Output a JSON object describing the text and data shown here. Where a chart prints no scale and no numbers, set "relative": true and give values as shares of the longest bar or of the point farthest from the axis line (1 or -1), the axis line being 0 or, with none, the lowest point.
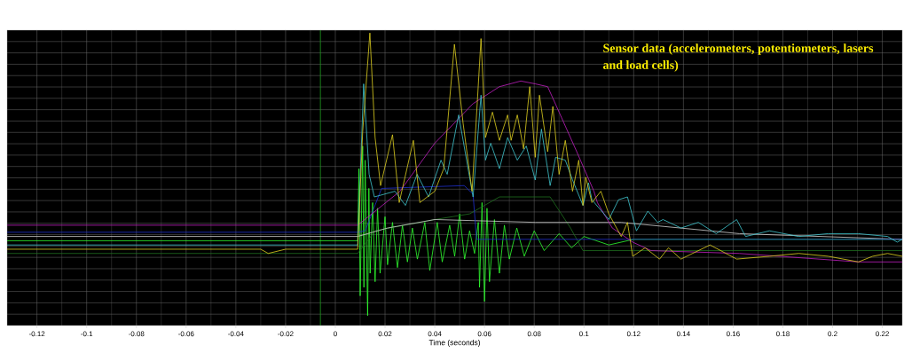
{
  "chart_data": {
    "type": "line",
    "relative": true,
    "xlabel": "Time (seconds)",
    "annotations": [
      "Sensor data (accelerometers, potentiometers, lasers and load cells)"
    ],
    "xlim": [
      -0.132,
      0.228
    ],
    "xticks": [
      -0.12,
      -0.1,
      -0.08,
      -0.06,
      -0.04,
      -0.02,
      0,
      0.02,
      0.04,
      0.06,
      0.08,
      0.1,
      0.12,
      0.14,
      0.16,
      0.18,
      0.2,
      0.22
    ],
    "grid": true,
    "ref_lines": [
      {
        "axis": "x",
        "value": -0.006,
        "color": "#20a020"
      }
    ],
    "series": [
      {
        "color": "#30ff30",
        "x": [
          -0.132,
          0.009,
          0.0095,
          0.01,
          0.011,
          0.0115,
          0.012,
          0.013,
          0.0135,
          0.014,
          0.015,
          0.016,
          0.017,
          0.018,
          0.02,
          0.021,
          0.023,
          0.025,
          0.027,
          0.029,
          0.031,
          0.033,
          0.036,
          0.038,
          0.041,
          0.043,
          0.046,
          0.048,
          0.05,
          0.052,
          0.054,
          0.056,
          0.0575,
          0.058,
          0.059,
          0.06,
          0.061,
          0.062,
          0.064,
          0.066,
          0.068,
          0.07,
          0.073,
          0.076,
          0.08,
          0.084,
          0.09,
          0.095,
          0.1,
          0.11,
          0.12,
          0.228
        ],
        "values": [
          0.265,
          0.265,
          0.52,
          0.07,
          0.6,
          0.1,
          0.55,
          0.0,
          0.45,
          0.15,
          0.4,
          0.12,
          0.38,
          0.15,
          0.35,
          0.18,
          0.33,
          0.17,
          0.32,
          0.19,
          0.31,
          0.2,
          0.33,
          0.16,
          0.33,
          0.19,
          0.32,
          0.21,
          0.36,
          0.2,
          0.3,
          0.22,
          0.33,
          0.1,
          0.4,
          0.05,
          0.38,
          0.12,
          0.34,
          0.15,
          0.32,
          0.2,
          0.31,
          0.21,
          0.3,
          0.23,
          0.29,
          0.24,
          0.28,
          0.25,
          0.27,
          0.27
        ]
      },
      {
        "color": "#207020",
        "x": [
          -0.132,
          0.009,
          0.016,
          0.04,
          0.054,
          0.066,
          0.0864,
          0.0946,
          0.0996,
          0.228
        ],
        "values": [
          0.22,
          0.22,
          0.3,
          0.34,
          0.36,
          0.42,
          0.42,
          0.31,
          0.23,
          0.23
        ]
      },
      {
        "color": "#d0d0d0",
        "x": [
          -0.132,
          0.009,
          0.021,
          0.04,
          0.0804,
          0.115,
          0.1625,
          0.228
        ],
        "values": [
          0.28,
          0.28,
          0.31,
          0.34,
          0.33,
          0.33,
          0.29,
          0.27
        ]
      },
      {
        "color": "#2030d0",
        "x": [
          -0.132,
          0.009,
          0.012,
          0.0186,
          0.0518,
          0.0554,
          0.0568,
          0.228
        ],
        "values": [
          0.295,
          0.295,
          0.3,
          0.45,
          0.46,
          0.43,
          0.27,
          0.27
        ]
      },
      {
        "color": "#c020c0",
        "x": [
          -0.132,
          0.009,
          0.026,
          0.04,
          0.0554,
          0.066,
          0.0746,
          0.0804,
          0.0854,
          0.09,
          0.0971,
          0.104,
          0.1054,
          0.1114,
          0.1196,
          0.127,
          0.1625,
          0.2104,
          0.228
        ],
        "values": [
          0.32,
          0.32,
          0.44,
          0.61,
          0.75,
          0.81,
          0.83,
          0.82,
          0.81,
          0.72,
          0.58,
          0.44,
          0.4,
          0.31,
          0.26,
          0.23,
          0.22,
          0.19,
          0.19
        ]
      },
      {
        "color": "#40c8d0",
        "x": [
          -0.132,
          0.009,
          0.0114,
          0.0136,
          0.0157,
          0.024,
          0.0282,
          0.0329,
          0.0375,
          0.0425,
          0.045,
          0.0496,
          0.0532,
          0.0554,
          0.0586,
          0.0604,
          0.0625,
          0.066,
          0.0693,
          0.0732,
          0.0768,
          0.0804,
          0.0829,
          0.0864,
          0.0886,
          0.0925,
          0.0954,
          0.0996,
          0.1018,
          0.1032,
          0.11,
          0.1139,
          0.1175,
          0.1211,
          0.1257,
          0.1296,
          0.1318,
          0.139,
          0.146,
          0.1532,
          0.1614,
          0.165,
          0.1746,
          0.1864,
          0.1982,
          0.2104,
          0.2221,
          0.226,
          0.228
        ],
        "values": [
          0.25,
          0.25,
          0.82,
          0.5,
          0.42,
          0.44,
          0.39,
          0.5,
          0.42,
          0.55,
          0.5,
          0.71,
          0.53,
          0.42,
          0.78,
          0.55,
          0.61,
          0.52,
          0.63,
          0.55,
          0.6,
          0.48,
          0.66,
          0.46,
          0.56,
          0.55,
          0.48,
          0.39,
          0.47,
          0.41,
          0.34,
          0.41,
          0.42,
          0.3,
          0.37,
          0.33,
          0.34,
          0.31,
          0.33,
          0.29,
          0.34,
          0.28,
          0.3,
          0.28,
          0.29,
          0.29,
          0.28,
          0.26,
          0.27
        ]
      },
      {
        "color": "#e0d020",
        "x": [
          -0.132,
          -0.03,
          -0.027,
          -0.02,
          0.009,
          0.011,
          0.0139,
          0.016,
          0.0182,
          0.023,
          0.0257,
          0.0314,
          0.034,
          0.04,
          0.0436,
          0.0479,
          0.0514,
          0.055,
          0.0586,
          0.0604,
          0.0632,
          0.066,
          0.0693,
          0.0707,
          0.0732,
          0.0757,
          0.0782,
          0.0804,
          0.0821,
          0.0854,
          0.0875,
          0.09,
          0.0925,
          0.0954,
          0.0979,
          0.0996,
          0.1007,
          0.1032,
          0.1068,
          0.11,
          0.115,
          0.1175,
          0.1196,
          0.1246,
          0.1304,
          0.134,
          0.139,
          0.1507,
          0.1614,
          0.1746,
          0.1864,
          0.1982,
          0.2104,
          0.2161,
          0.2221,
          0.228
        ],
        "values": [
          0.235,
          0.235,
          0.22,
          0.235,
          0.235,
          0.65,
          1.0,
          0.63,
          0.46,
          0.64,
          0.4,
          0.62,
          0.4,
          0.44,
          0.52,
          0.96,
          0.68,
          0.44,
          0.98,
          0.63,
          0.72,
          0.62,
          0.71,
          0.62,
          0.71,
          0.59,
          0.81,
          0.56,
          0.78,
          0.58,
          0.74,
          0.5,
          0.62,
          0.44,
          0.55,
          0.39,
          0.49,
          0.4,
          0.44,
          0.36,
          0.28,
          0.33,
          0.21,
          0.24,
          0.2,
          0.24,
          0.2,
          0.25,
          0.2,
          0.21,
          0.22,
          0.21,
          0.19,
          0.21,
          0.22,
          0.21
        ]
      }
    ]
  }
}
